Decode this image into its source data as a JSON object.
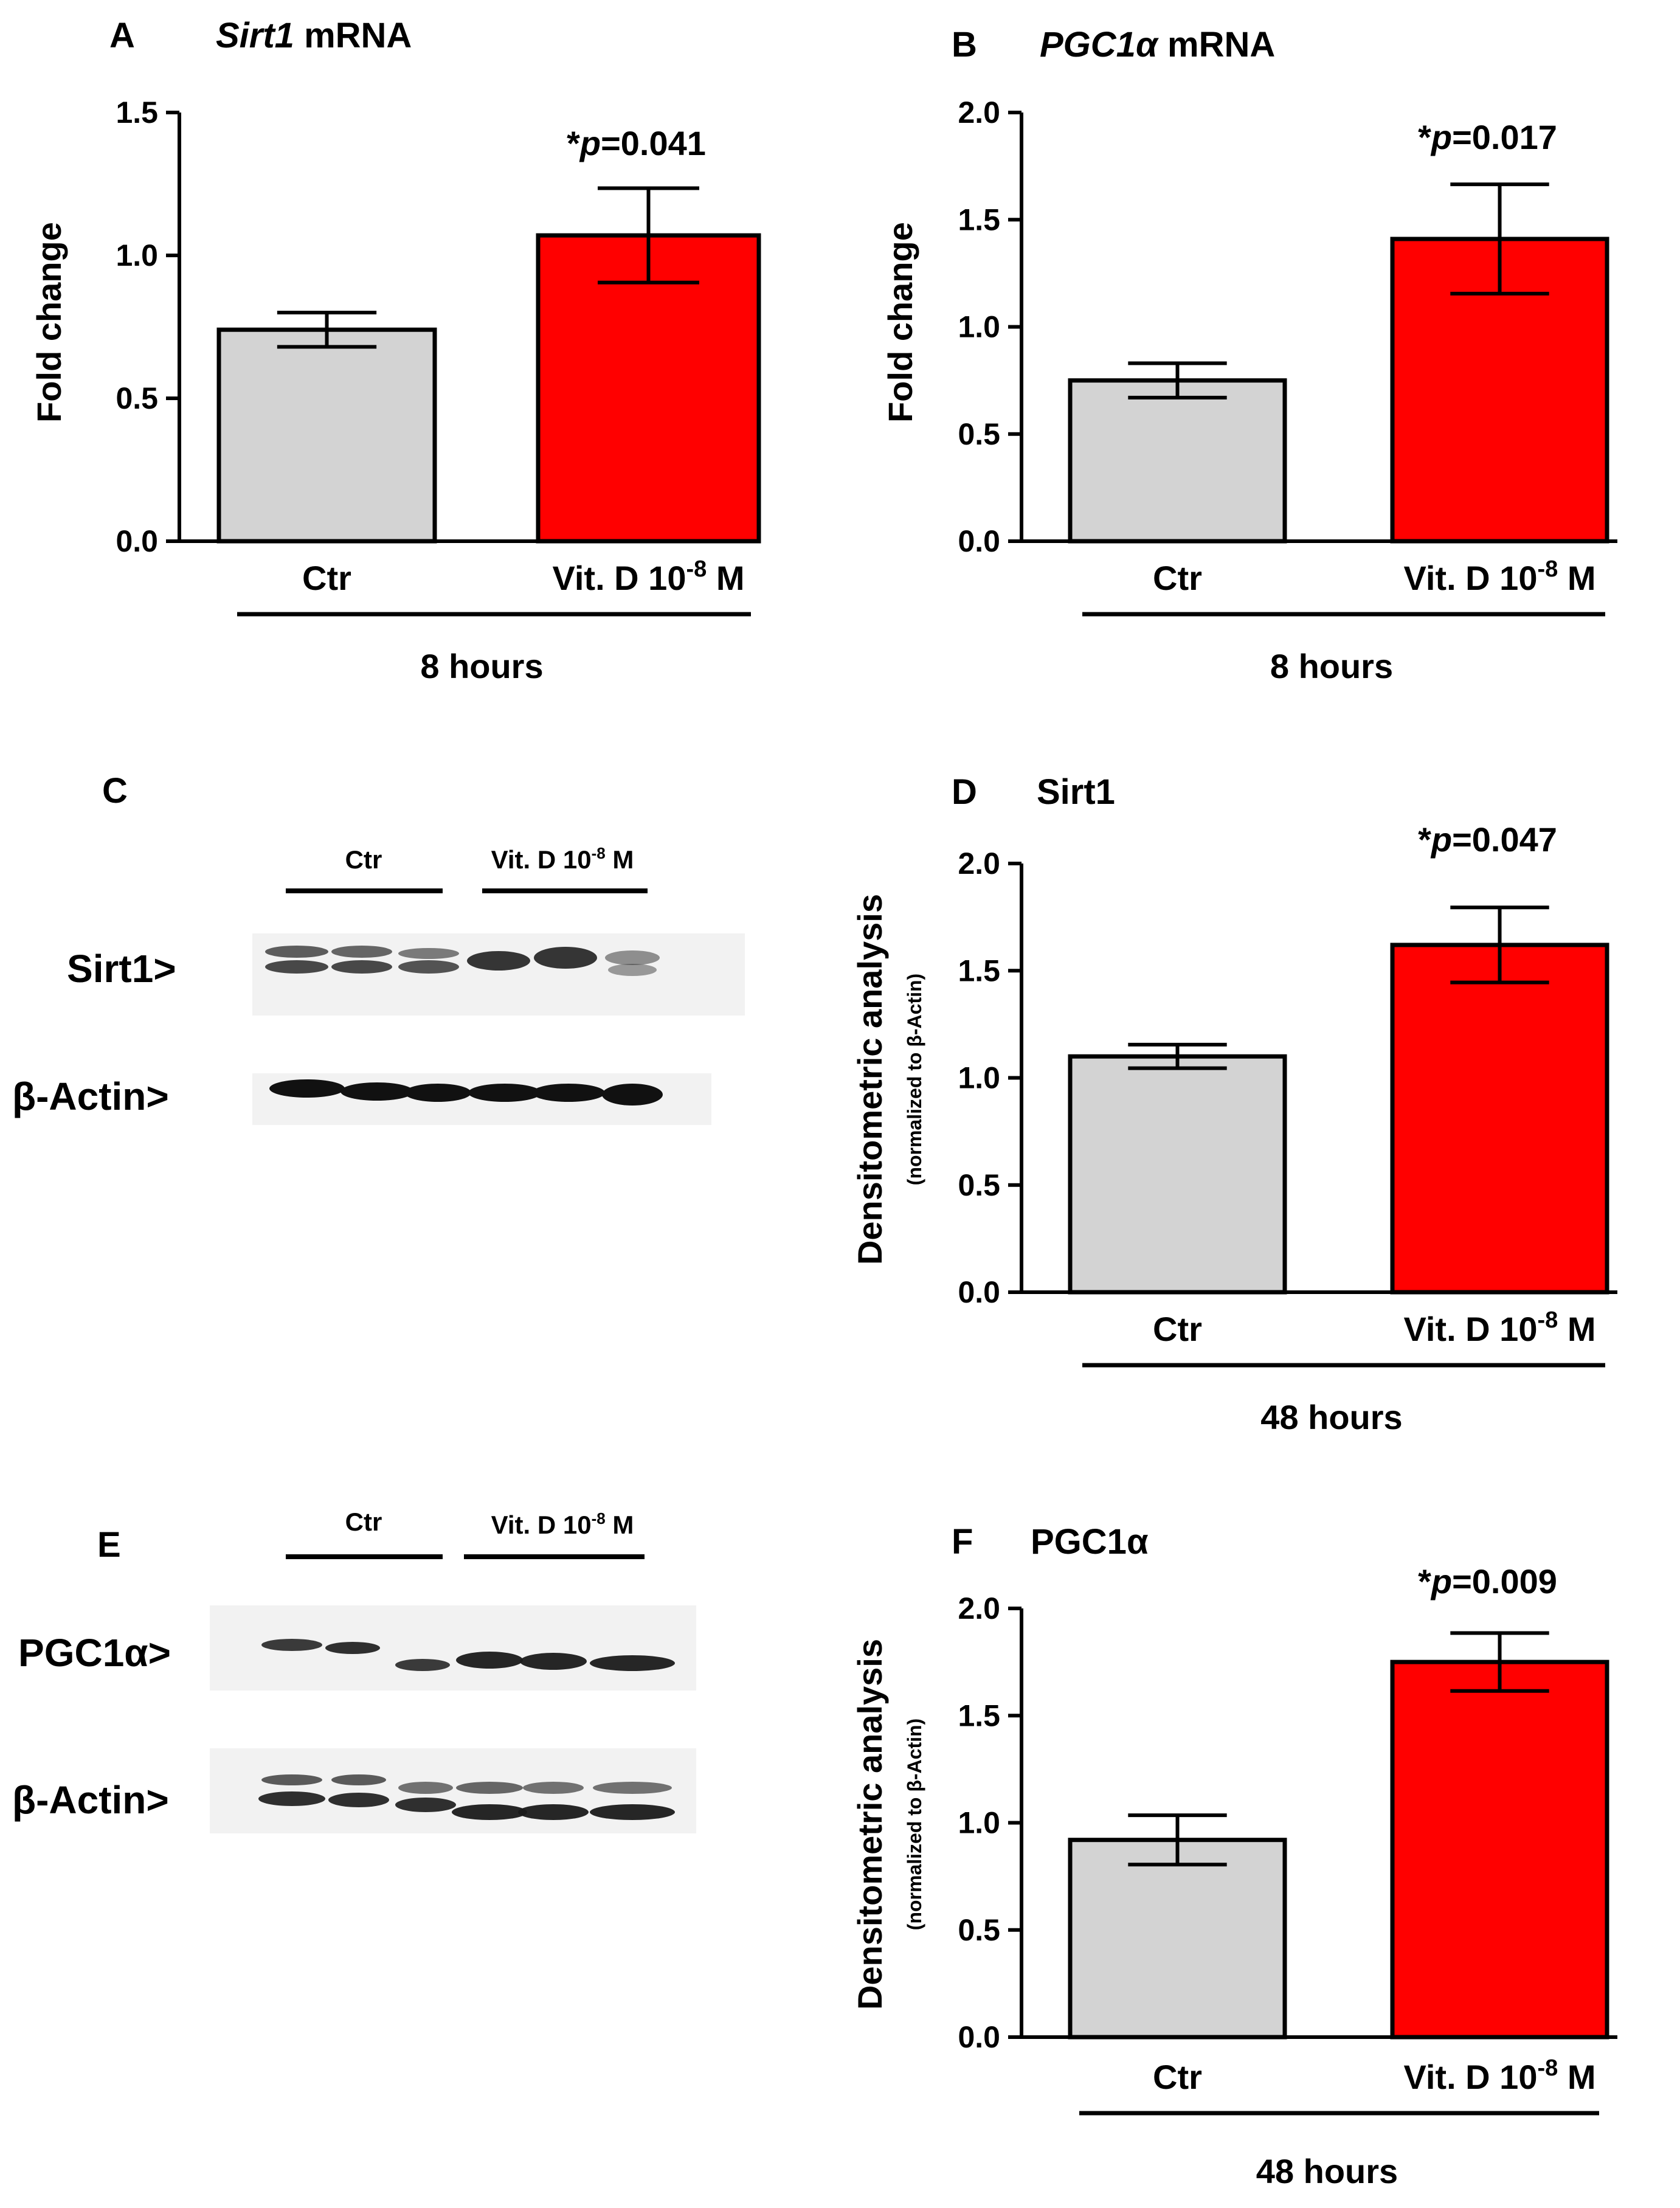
{
  "figure": {
    "colors": {
      "control": "#d3d3d3",
      "treatment": "#ff0000",
      "axis": "#000000",
      "band": "#141414",
      "membrane": "#f2f2f2"
    }
  },
  "chart_data": [
    {
      "id": "A",
      "panel_letter": "A",
      "type": "bar",
      "title_italic": "Sirt1",
      "title_rest": " mRNA",
      "ylabel": "Fold change",
      "ylabel_sub": "",
      "ylim": [
        0,
        1.5
      ],
      "yticks": [
        "0.0",
        "0.5",
        "1.0",
        "1.5"
      ],
      "ytick_values": [
        0,
        0.5,
        1.0,
        1.5
      ],
      "categories": [
        "Ctr",
        "Vit. D 10"
      ],
      "category_superscript": [
        "",
        "-8"
      ],
      "category_suffix": [
        "",
        " M"
      ],
      "values": [
        0.74,
        1.07
      ],
      "errors": [
        0.06,
        0.165
      ],
      "annotation_star": "*",
      "annotation_p": "p",
      "annotation_value": "=0.041",
      "group_label": "8 hours"
    },
    {
      "id": "B",
      "panel_letter": "B",
      "type": "bar",
      "title_italic": "PGC1α",
      "title_rest": " mRNA",
      "ylabel": "Fold change",
      "ylabel_sub": "",
      "ylim": [
        0,
        2.0
      ],
      "yticks": [
        "0.0",
        "0.5",
        "1.0",
        "1.5",
        "2.0"
      ],
      "ytick_values": [
        0,
        0.5,
        1.0,
        1.5,
        2.0
      ],
      "categories": [
        "Ctr",
        "Vit. D 10"
      ],
      "category_superscript": [
        "",
        "-8"
      ],
      "category_suffix": [
        "",
        " M"
      ],
      "values": [
        0.75,
        1.41
      ],
      "errors": [
        0.08,
        0.255
      ],
      "annotation_star": "*",
      "annotation_p": "p",
      "annotation_value": "=0.017",
      "group_label": "8 hours"
    },
    {
      "id": "D",
      "panel_letter": "D",
      "type": "bar",
      "title_italic": "",
      "title_rest": "Sirt1",
      "ylabel": "Densitometric analysis",
      "ylabel_sub": "(normalized to β-Actin)",
      "ylim": [
        0,
        2.0
      ],
      "yticks": [
        "0.0",
        "0.5",
        "1.0",
        "1.5",
        "2.0"
      ],
      "ytick_values": [
        0,
        0.5,
        1.0,
        1.5,
        2.0
      ],
      "categories": [
        "Ctr",
        "Vit. D 10"
      ],
      "category_superscript": [
        "",
        "-8"
      ],
      "category_suffix": [
        "",
        " M"
      ],
      "values": [
        1.1,
        1.62
      ],
      "errors": [
        0.055,
        0.175
      ],
      "annotation_star": "*",
      "annotation_p": "p",
      "annotation_value": "=0.047",
      "group_label": "48 hours"
    },
    {
      "id": "F",
      "panel_letter": "F",
      "type": "bar",
      "title_italic": "",
      "title_rest": "PGC1α",
      "ylabel": "Densitometric analysis",
      "ylabel_sub": "(normalized to β-Actin)",
      "ylim": [
        0,
        2.0
      ],
      "yticks": [
        "0.0",
        "0.5",
        "1.0",
        "1.5",
        "2.0"
      ],
      "ytick_values": [
        0,
        0.5,
        1.0,
        1.5,
        2.0
      ],
      "categories": [
        "Ctr",
        "Vit. D 10"
      ],
      "category_superscript": [
        "",
        "-8"
      ],
      "category_suffix": [
        "",
        " M"
      ],
      "values": [
        0.92,
        1.75
      ],
      "errors": [
        0.115,
        0.135
      ],
      "annotation_star": "*",
      "annotation_p": "p",
      "annotation_value": "=0.009",
      "group_label": "48 hours"
    }
  ],
  "blots": [
    {
      "id": "C",
      "panel_letter": "C",
      "group_ctr": "Ctr",
      "group_vitd": "Vit. D 10",
      "group_vitd_sup": "-8",
      "group_vitd_suffix": " M",
      "row1_label": "Sirt1>",
      "row2_label": "β-Actin>"
    },
    {
      "id": "E",
      "panel_letter": "E",
      "group_ctr": "Ctr",
      "group_vitd": "Vit. D 10",
      "group_vitd_sup": "-8",
      "group_vitd_suffix": " M",
      "row1_label": "PGC1α>",
      "row2_label": "β-Actin>"
    }
  ]
}
